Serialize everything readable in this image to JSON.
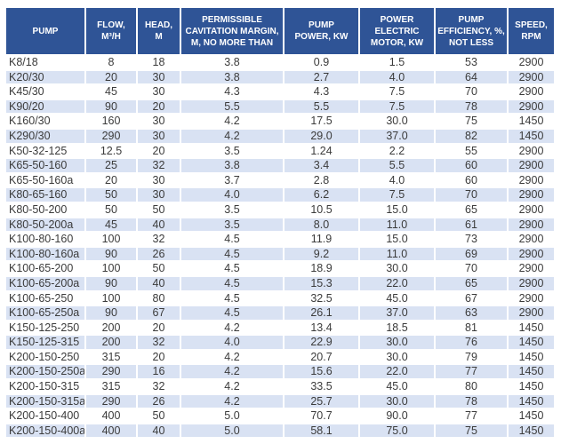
{
  "colors": {
    "header_bg": "#2f5496",
    "header_text": "#ffffff",
    "band_row_bg": "#d9e2f3",
    "plain_row_bg": "#ffffff",
    "body_text": "#3b3b3b"
  },
  "chart_data": {
    "type": "table",
    "title": "",
    "layout_hints": {
      "banded_rows": true,
      "band_pattern": "odd-white-even-lightblue",
      "cell_separator": "white 2px"
    },
    "columns": [
      "PUMP",
      "FLOW,\nM³/H",
      "HEAD,\nM",
      "PERMISSIBLE\nCAVITATION MARGIN,\nM, NO MORE THAN",
      "PUMP\nPOWER, KW",
      "POWER\nELECTRIC\nMOTOR, KW",
      "PUMP\nEFFICIENCY, %,\nNOT LESS",
      "SPEED,\nRPM"
    ],
    "rows": [
      [
        "K8/18",
        "8",
        "18",
        "3.8",
        "0.9",
        "1.5",
        "53",
        "2900"
      ],
      [
        "K20/30",
        "20",
        "30",
        "3.8",
        "2.7",
        "4.0",
        "64",
        "2900"
      ],
      [
        "K45/30",
        "45",
        "30",
        "4.3",
        "4.3",
        "7.5",
        "70",
        "2900"
      ],
      [
        "K90/20",
        "90",
        "20",
        "5.5",
        "5.5",
        "7.5",
        "78",
        "2900"
      ],
      [
        "K160/30",
        "160",
        "30",
        "4.2",
        "17.5",
        "30.0",
        "75",
        "1450"
      ],
      [
        "K290/30",
        "290",
        "30",
        "4.2",
        "29.0",
        "37.0",
        "82",
        "1450"
      ],
      [
        "K50-32-125",
        "12.5",
        "20",
        "3.5",
        "1.24",
        "2.2",
        "55",
        "2900"
      ],
      [
        "K65-50-160",
        "25",
        "32",
        "3.8",
        "3.4",
        "5.5",
        "60",
        "2900"
      ],
      [
        "K65-50-160a",
        "20",
        "30",
        "3.7",
        "2.8",
        "4.0",
        "60",
        "2900"
      ],
      [
        "K80-65-160",
        "50",
        "30",
        "4.0",
        "6.2",
        "7.5",
        "70",
        "2900"
      ],
      [
        "K80-50-200",
        "50",
        "50",
        "3.5",
        "10.5",
        "15.0",
        "65",
        "2900"
      ],
      [
        "K80-50-200a",
        "45",
        "40",
        "3.5",
        "8.0",
        "11.0",
        "61",
        "2900"
      ],
      [
        "K100-80-160",
        "100",
        "32",
        "4.5",
        "11.9",
        "15.0",
        "73",
        "2900"
      ],
      [
        "K100-80-160a",
        "90",
        "26",
        "4.5",
        "9.2",
        "11.0",
        "69",
        "2900"
      ],
      [
        "K100-65-200",
        "100",
        "50",
        "4.5",
        "18.9",
        "30.0",
        "70",
        "2900"
      ],
      [
        "K100-65-200a",
        "90",
        "40",
        "4.5",
        "15.3",
        "22.0",
        "65",
        "2900"
      ],
      [
        "K100-65-250",
        "100",
        "80",
        "4.5",
        "32.5",
        "45.0",
        "67",
        "2900"
      ],
      [
        "K100-65-250a",
        "90",
        "67",
        "4.5",
        "26.1",
        "37.0",
        "63",
        "2900"
      ],
      [
        "K150-125-250",
        "200",
        "20",
        "4.2",
        "13.4",
        "18.5",
        "81",
        "1450"
      ],
      [
        "K150-125-315",
        "200",
        "32",
        "4.0",
        "22.9",
        "30.0",
        "76",
        "1450"
      ],
      [
        "K200-150-250",
        "315",
        "20",
        "4.2",
        "20.7",
        "30.0",
        "79",
        "1450"
      ],
      [
        "K200-150-250a",
        "290",
        "16",
        "4.2",
        "15.6",
        "22.0",
        "77",
        "1450"
      ],
      [
        "K200-150-315",
        "315",
        "32",
        "4.2",
        "33.5",
        "45.0",
        "80",
        "1450"
      ],
      [
        "K200-150-315a",
        "290",
        "26",
        "4.2",
        "25.7",
        "30.0",
        "78",
        "1450"
      ],
      [
        "K200-150-400",
        "400",
        "50",
        "5.0",
        "70.7",
        "90.0",
        "77",
        "1450"
      ],
      [
        "K200-150-400a",
        "400",
        "40",
        "5.0",
        "58.1",
        "75.0",
        "75",
        "1450"
      ]
    ]
  }
}
